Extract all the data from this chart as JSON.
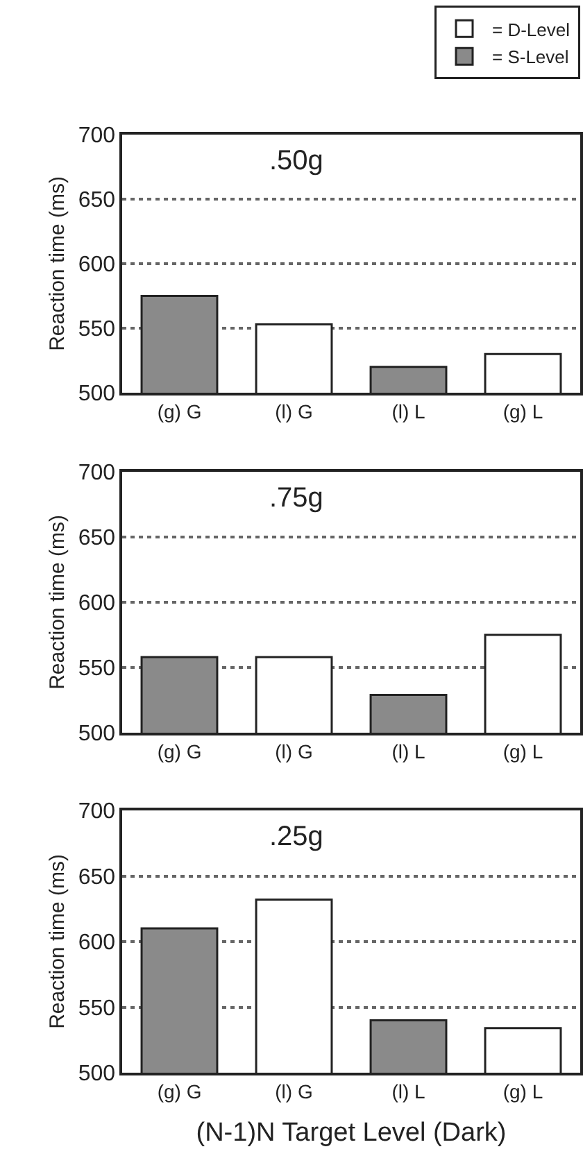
{
  "chart_data": [
    {
      "type": "bar",
      "title": ".50g",
      "ylabel": "Reaction time (ms)",
      "categories": [
        "(g) G",
        "(l) G",
        "(l) L",
        "(g) L"
      ],
      "ylim": [
        500,
        700
      ],
      "yticks": [
        500,
        550,
        600,
        650,
        700
      ],
      "grid": "y",
      "legend": "top right",
      "series": [
        {
          "name": "= D-Level",
          "color": "#ffffff",
          "values": [
            null,
            553,
            null,
            530
          ]
        },
        {
          "name": "= S-Level",
          "color": "#8a8a8a",
          "values": [
            575,
            null,
            520,
            null
          ]
        }
      ]
    },
    {
      "type": "bar",
      "title": ".75g",
      "ylabel": "Reaction time (ms)",
      "categories": [
        "(g) G",
        "(l) G",
        "(l) L",
        "(g) L"
      ],
      "ylim": [
        500,
        700
      ],
      "yticks": [
        500,
        550,
        600,
        650,
        700
      ],
      "grid": "y",
      "series": [
        {
          "color": "#ffffff",
          "values": [
            null,
            558,
            null,
            575
          ]
        },
        {
          "color": "#8a8a8a",
          "values": [
            558,
            null,
            529,
            null
          ]
        }
      ]
    },
    {
      "type": "bar",
      "title": ".25g",
      "ylabel": "Reaction time (ms)",
      "xlabel": "(N-1)N Target Level (Dark)",
      "categories": [
        "(g) G",
        "(l) G",
        "(l) L",
        "(g) L"
      ],
      "ylim": [
        500,
        700
      ],
      "yticks": [
        500,
        550,
        600,
        650,
        700
      ],
      "grid": "y",
      "series": [
        {
          "color": "#ffffff",
          "values": [
            null,
            632,
            null,
            534
          ]
        },
        {
          "color": "#8a8a8a",
          "values": [
            610,
            null,
            540,
            null
          ]
        }
      ]
    }
  ]
}
